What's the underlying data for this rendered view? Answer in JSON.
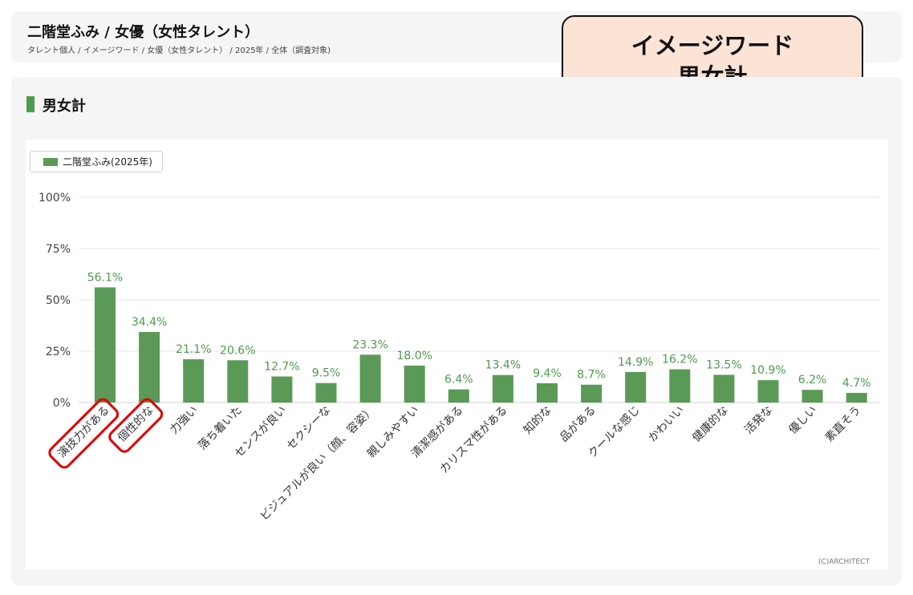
{
  "header": {
    "title": "二階堂ふみ / 女優（女性タレント）",
    "breadcrumb": "タレント個人 / イメージワード / 女優（女性タレント） / 2025年 / 全体（調査対象)"
  },
  "callout": {
    "line1": "イメージワード",
    "line2": "男女計"
  },
  "section": {
    "title": "男女計"
  },
  "credit": "(C)ARCHITECT",
  "colors": {
    "bar": "#5a9a56",
    "value_label": "#4e9a4e",
    "highlight": "#e00000",
    "callout_bg": "#fbe3d6"
  },
  "chart_data": {
    "type": "bar",
    "categories": [
      "演技力がある",
      "個性的な",
      "力強い",
      "落ち着いた",
      "センスが良い",
      "セクシーな",
      "ビジュアルが良い（顔、容姿）",
      "親しみやすい",
      "清潔感がある",
      "カリスマ性がある",
      "知的な",
      "品がある",
      "クールな感じ",
      "かわいい",
      "健康的な",
      "活発な",
      "優しい",
      "素直そう"
    ],
    "series": [
      {
        "name": "二階堂ふみ(2025年)",
        "values": [
          56.1,
          34.4,
          21.1,
          20.6,
          12.7,
          9.5,
          23.3,
          18.0,
          6.4,
          13.4,
          9.4,
          8.7,
          14.9,
          16.2,
          13.5,
          10.9,
          6.2,
          4.7
        ],
        "value_labels": [
          "56.1%",
          "34.4%",
          "21.1%",
          "20.6%",
          "12.7%",
          "9.5%",
          "23.3%",
          "18.0%",
          "6.4%",
          "13.4%",
          "9.4%",
          "8.7%",
          "14.9%",
          "16.2%",
          "13.5%",
          "10.9%",
          "6.2%",
          "4.7%"
        ]
      }
    ],
    "ylim": [
      0,
      100
    ],
    "yticks": [
      "0%",
      "25%",
      "50%",
      "75%",
      "100%"
    ],
    "ytick_values": [
      0,
      25,
      50,
      75,
      100
    ],
    "grid": true,
    "legend": "top-left",
    "highlighted_categories": [
      "演技力がある",
      "個性的な"
    ]
  }
}
